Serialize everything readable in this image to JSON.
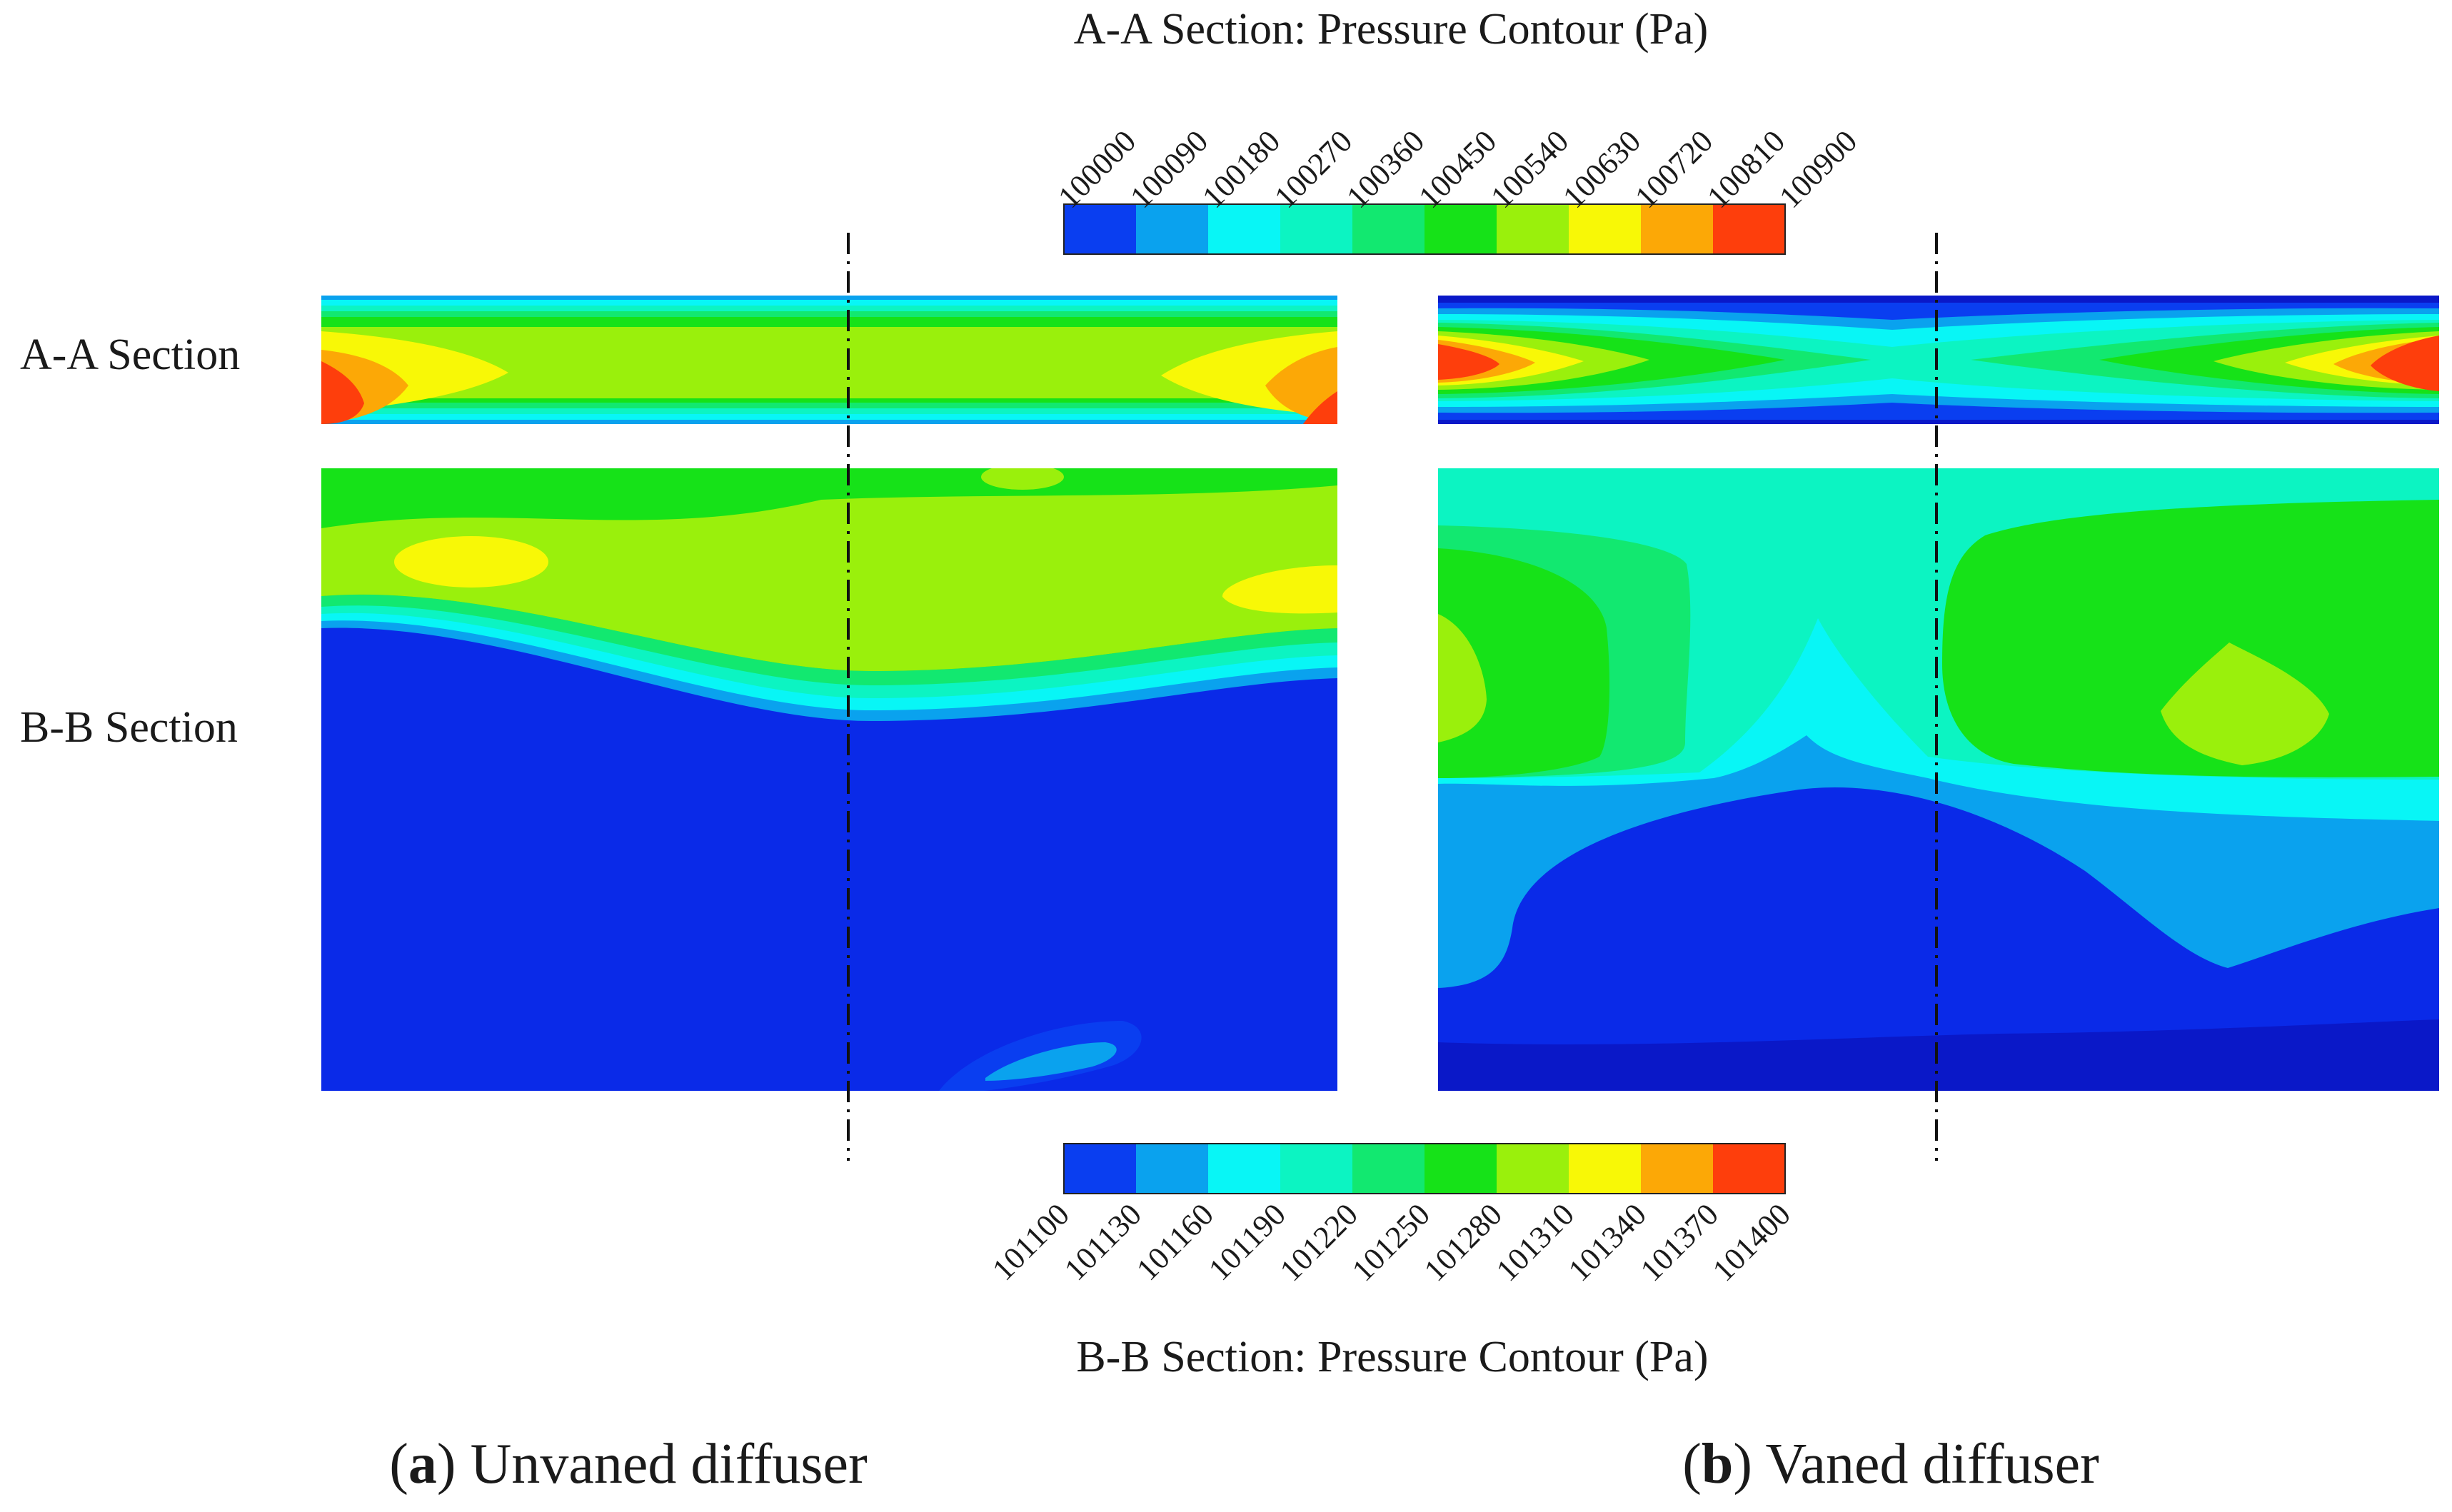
{
  "colormap": {
    "colors": [
      "#0a3ef0",
      "#0aa2ee",
      "#08f6f6",
      "#0cf4c2",
      "#12e870",
      "#16e218",
      "#9af00c",
      "#f8f806",
      "#fca806",
      "#fe3e0c"
    ],
    "section_background": "#0a2ae8",
    "dark_blue": "#0a18c8"
  },
  "colorbars": {
    "aa": {
      "title": "A-A Section: Pressure Contour (Pa)",
      "ticks": [
        "100000",
        "100090",
        "100180",
        "100270",
        "100360",
        "100450",
        "100540",
        "100630",
        "100720",
        "100810",
        "100900"
      ]
    },
    "bb": {
      "title": "B-B Section: Pressure Contour (Pa)",
      "ticks": [
        "101100",
        "101130",
        "101160",
        "101190",
        "101220",
        "101250",
        "101280",
        "101310",
        "101340",
        "101370",
        "101400"
      ]
    }
  },
  "row_labels": {
    "aa": "A-A Section",
    "bb": "B-B Section"
  },
  "captions": {
    "a": {
      "letter": "a",
      "text": "Unvaned diffuser"
    },
    "b": {
      "letter": "b",
      "text": "Vaned diffuser"
    }
  }
}
